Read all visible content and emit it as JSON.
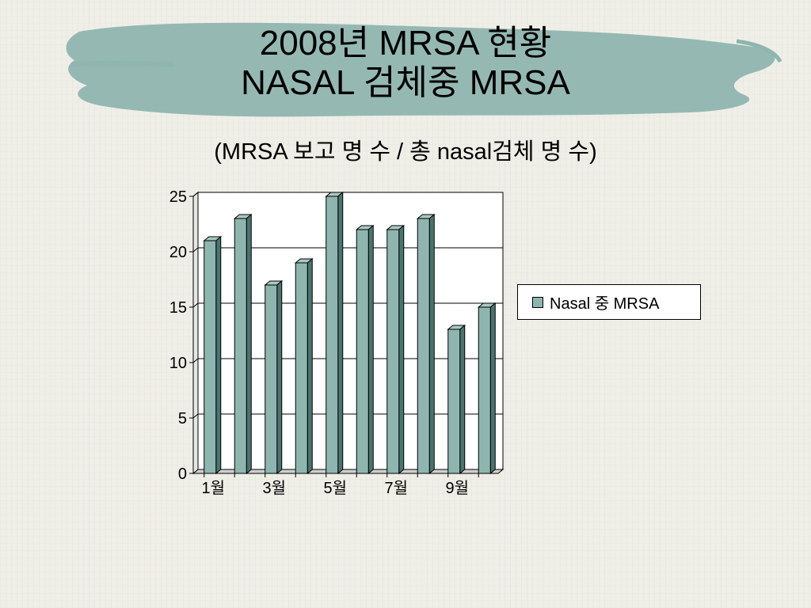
{
  "slide": {
    "title_line1": "2008년 MRSA 현황",
    "title_line2": "NASAL 검체중 MRSA",
    "subtitle": "(MRSA 보고 명 수 / 총 nasal검체 명 수)"
  },
  "colors": {
    "bar_face": "#8fb5af",
    "bar_side": "#4a7470",
    "brush": "#8fb5af",
    "background": "#efefe8"
  },
  "chart_data": {
    "type": "bar",
    "categories": [
      "1월",
      "",
      "3월",
      "",
      "5월",
      "",
      "7월",
      "",
      "9월",
      ""
    ],
    "series": [
      {
        "name": "Nasal 중 MRSA",
        "values": [
          21,
          23,
          17,
          19,
          25,
          22,
          22,
          23,
          13,
          15
        ]
      }
    ],
    "yticks": [
      "0",
      "5",
      "10",
      "15",
      "20",
      "25"
    ],
    "ylim": [
      0,
      25
    ],
    "grid": true,
    "legend": "right"
  }
}
